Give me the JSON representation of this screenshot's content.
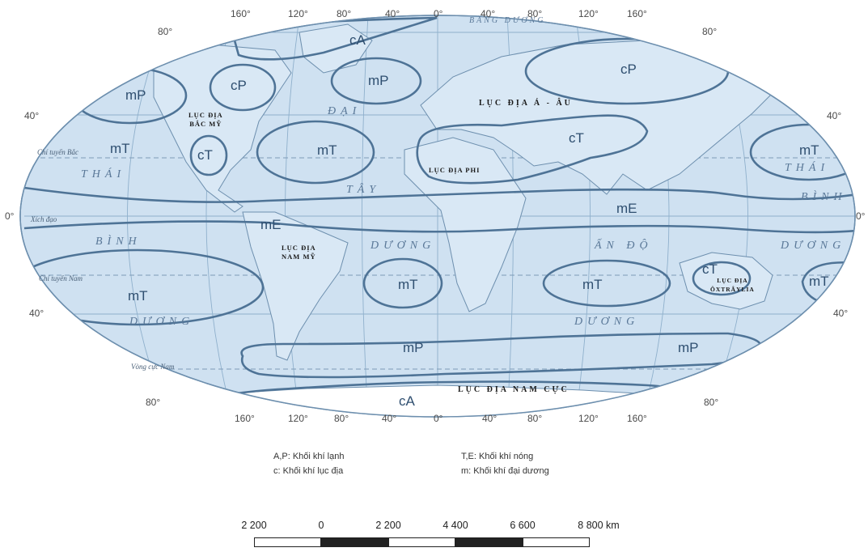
{
  "map": {
    "degrees_top": [
      "160°",
      "120°",
      "80°",
      "40°",
      "0°",
      "40°",
      "80°",
      "120°",
      "160°"
    ],
    "degrees_bottom": [
      "160°",
      "120°",
      "80°",
      "40°",
      "0°",
      "40°",
      "80°",
      "120°",
      "160°"
    ],
    "lat_left": [
      "80°",
      "40°",
      "0°",
      "40°",
      "80°"
    ],
    "lat_right": [
      "80°",
      "40°",
      "0°",
      "40°",
      "80°"
    ],
    "lines": {
      "tropic_north": "Chí tuyến Bắc",
      "equator": "Xích đạo",
      "tropic_south": "Chí tuyến Nam",
      "antarctic_circle": "Vòng cực Nam"
    },
    "air_masses": {
      "cA_north": "cA",
      "cP_america": "cP",
      "cP_asia": "cP",
      "mP_pacific_n": "mP",
      "mP_atlantic_n": "mP",
      "mT_pacific_ne": "mT",
      "cT_america": "cT",
      "mT_atlantic_n": "mT",
      "cT_africa_asia": "cT",
      "mT_pacific_nw": "mT",
      "mE_america": "mE",
      "mE_asia": "mE",
      "mT_pacific_s": "mT",
      "mT_atlantic_s": "mT",
      "mT_indian_s": "mT",
      "cT_australia": "cT",
      "mT_pacific_sw": "mT",
      "mP_south_1": "mP",
      "mP_south_2": "mP",
      "cA_south": "cA"
    },
    "oceans": {
      "thai_left": "THÁI",
      "thai_right": "THÁI",
      "binh_left": "BÌNH",
      "binh_right": "BÌNH",
      "duong_left": "DƯƠNG",
      "dai": "ĐẠI",
      "tay": "TÂY",
      "duong_atl": "DƯƠNG",
      "an_do": "ẤN ĐỘ",
      "duong_ind": "DƯƠNG",
      "duong_right": "DƯƠNG",
      "bang_duong": "BĂNG DƯƠNG"
    },
    "continents": {
      "north_america": "LỤC ĐỊA\nBẮC MỸ",
      "south_america": "LỤC ĐỊA\nNAM MỸ",
      "africa": "LỤC ĐỊA PHI",
      "eurasia": "LỤC ĐỊA Á - ÂU",
      "australia": "LỤC ĐỊA\nÔXTRÂYLIA",
      "antarctica": "LỤC ĐỊA NAM CỰC"
    }
  },
  "legend": {
    "cold": "A,P: Khối khí lạnh",
    "hot": "T,E: Khối khí nóng",
    "continental": "c: Khối khí lục địa",
    "maritime": "m: Khối khí đại dương"
  },
  "scale_bar": {
    "labels": [
      "2 200",
      "0",
      "2 200",
      "4 400",
      "6 600",
      "8 800 km"
    ]
  },
  "colors": {
    "ocean": "#cfe1f1",
    "lines": "#4e7396",
    "land_stroke": "#6d8fae",
    "antarctica": "#ffffff"
  }
}
